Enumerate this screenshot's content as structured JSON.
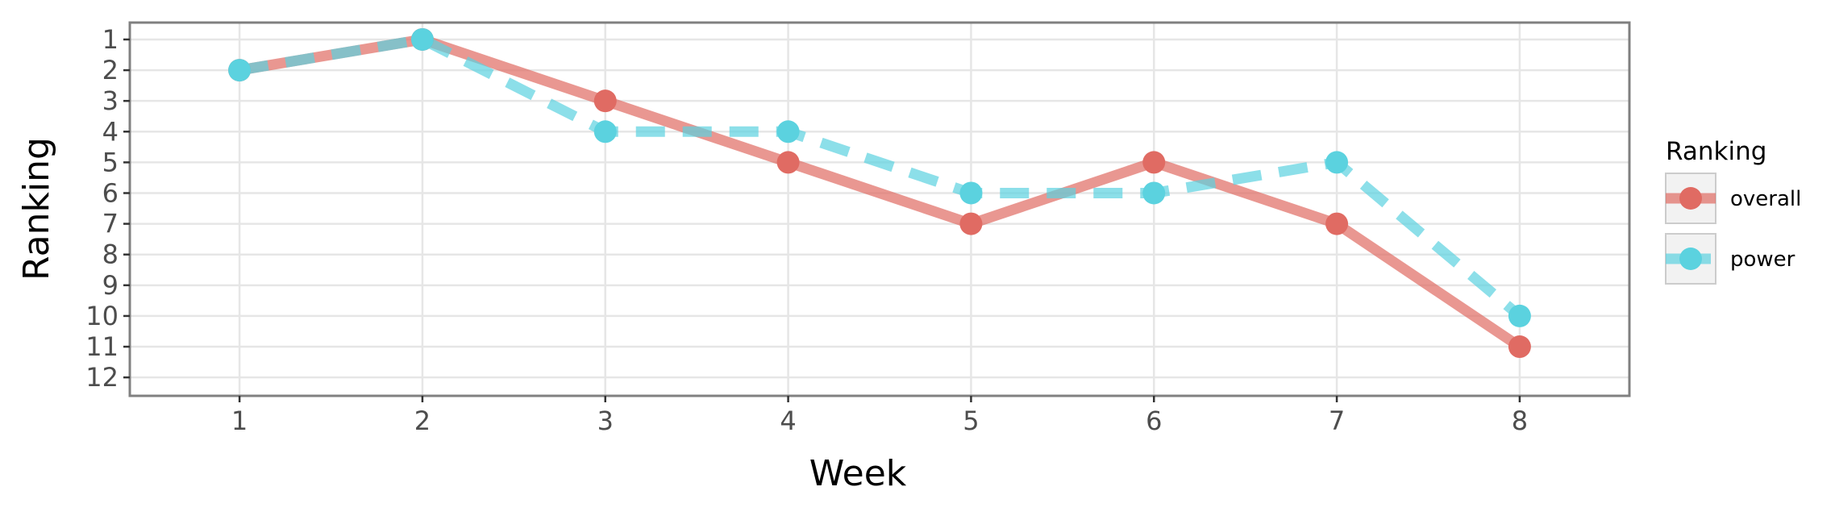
{
  "chart_data": {
    "type": "line",
    "title": "",
    "xlabel": "Week",
    "ylabel": "Ranking",
    "x": [
      1,
      2,
      3,
      4,
      5,
      6,
      7,
      8
    ],
    "x_ticks": [
      "1",
      "2",
      "3",
      "4",
      "5",
      "6",
      "7",
      "8"
    ],
    "y_ticks": [
      "1",
      "2",
      "3",
      "4",
      "5",
      "6",
      "7",
      "8",
      "9",
      "10",
      "11",
      "12"
    ],
    "xlim": [
      0.4,
      8.6
    ],
    "ylim": [
      12.6,
      0.45
    ],
    "y_reversed": true,
    "grid": true,
    "legend": {
      "title": "Ranking",
      "placement": "right"
    },
    "series": [
      {
        "name": "overall",
        "values": [
          2,
          1,
          3,
          5,
          7,
          5,
          7,
          11
        ],
        "color": "#e06b63",
        "line_style": "solid"
      },
      {
        "name": "power",
        "values": [
          2,
          1,
          4,
          4,
          6,
          6,
          5,
          10
        ],
        "color": "#5bd2df",
        "line_style": "dashed"
      }
    ]
  }
}
